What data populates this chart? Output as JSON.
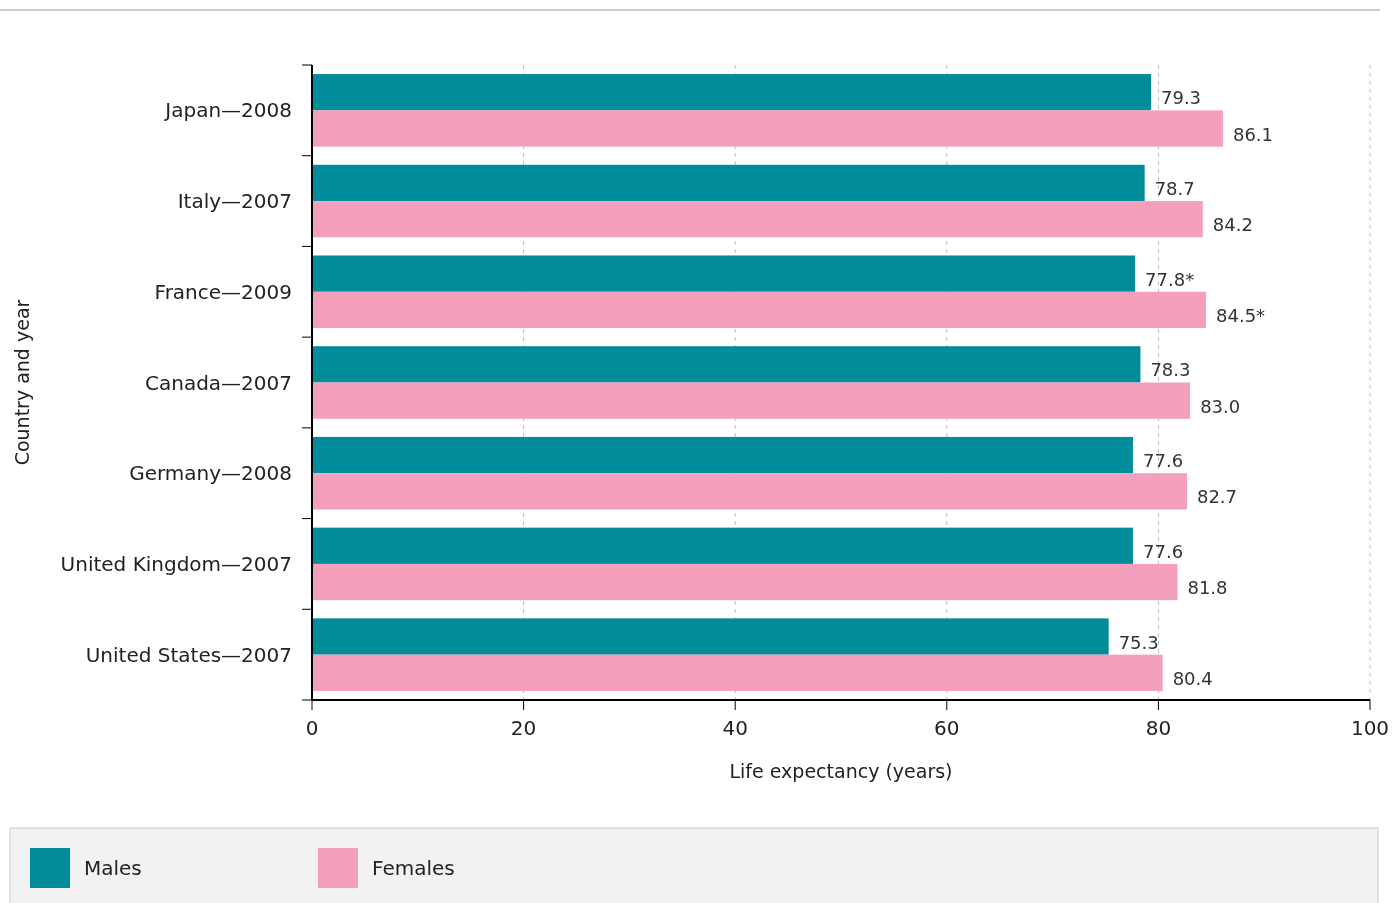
{
  "chart_data": {
    "type": "bar",
    "orientation": "horizontal",
    "xlabel": "Life expectancy (years)",
    "ylabel": "Country and year",
    "categories": [
      "Japan—2008",
      "Italy—2007",
      "France—2009",
      "Canada—2007",
      "Germany—2008",
      "United Kingdom—2007",
      "United States—2007"
    ],
    "series": [
      {
        "name": "Males",
        "color": "#008c99",
        "values": [
          79.3,
          78.7,
          77.8,
          78.3,
          77.6,
          77.6,
          75.3
        ],
        "value_labels": [
          "79.3",
          "78.7",
          "77.8*",
          "78.3",
          "77.6",
          "77.6",
          "75.3"
        ]
      },
      {
        "name": "Females",
        "color": "#f4a0bd",
        "values": [
          86.1,
          84.2,
          84.5,
          83.0,
          82.7,
          81.8,
          80.4
        ],
        "value_labels": [
          "86.1",
          "84.2",
          "84.5*",
          "83.0",
          "82.7",
          "81.8",
          "80.4"
        ]
      }
    ],
    "xlim": [
      0,
      100
    ],
    "xticks": [
      0,
      20,
      40,
      60,
      80,
      100
    ],
    "grid": "x",
    "legend": "bottom"
  }
}
